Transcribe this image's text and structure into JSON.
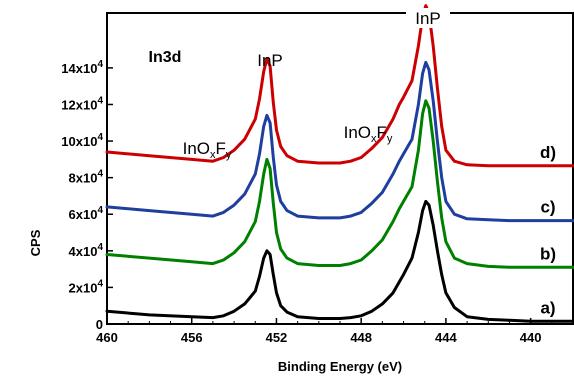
{
  "chart_data": {
    "type": "line",
    "title": "",
    "xlabel": "Binding Energy (eV)",
    "ylabel": "CPS",
    "xlim": [
      460,
      438
    ],
    "ylim": [
      0,
      170000
    ],
    "x_reversed": true,
    "x_ticks": [
      460,
      456,
      452,
      448,
      444,
      440
    ],
    "y_ticks": [
      {
        "value": 0,
        "label": "0"
      },
      {
        "value": 20000,
        "label": "2x10",
        "exp": "4"
      },
      {
        "value": 40000,
        "label": "4x10",
        "exp": "4"
      },
      {
        "value": 60000,
        "label": "6x10",
        "exp": "4"
      },
      {
        "value": 80000,
        "label": "8x10",
        "exp": "4"
      },
      {
        "value": 100000,
        "label": "10x10",
        "exp": "4"
      },
      {
        "value": 120000,
        "label": "12x10",
        "exp": "4"
      },
      {
        "value": 140000,
        "label": "14x10",
        "exp": "4"
      }
    ],
    "annotations": [
      {
        "key": "region",
        "text": "In3d"
      },
      {
        "key": "inp_left",
        "text": "InP"
      },
      {
        "key": "inp_right",
        "text": "InP"
      },
      {
        "key": "inox_left",
        "text": "InO",
        "sub1": "x",
        "mid": "F",
        "sub2": "y"
      },
      {
        "key": "inox_right",
        "text": "InO",
        "sub1": "x",
        "mid": "F",
        "sub2": "y"
      }
    ],
    "series": [
      {
        "label": "a)",
        "color": "#000000",
        "x": [
          460,
          458,
          456,
          455,
          454.5,
          454,
          453.5,
          453,
          452.8,
          452.6,
          452.45,
          452.3,
          452.15,
          452,
          451.8,
          451.5,
          451,
          450,
          449,
          448.5,
          448,
          447.5,
          447,
          446.5,
          446.2,
          446,
          445.6,
          445.3,
          445.1,
          444.95,
          444.8,
          444.6,
          444.4,
          444.2,
          444,
          443.6,
          443,
          442,
          441,
          440,
          439,
          438
        ],
        "y": [
          7000,
          5000,
          4000,
          3500,
          4500,
          7000,
          11000,
          18000,
          26000,
          36000,
          40000,
          38000,
          27000,
          17000,
          10000,
          6500,
          4000,
          3000,
          3000,
          3500,
          4500,
          7000,
          11000,
          17000,
          23000,
          27000,
          36000,
          50000,
          62000,
          67000,
          65000,
          54000,
          40000,
          27000,
          17000,
          9000,
          4000,
          2500,
          2000,
          1500,
          1500,
          1500
        ]
      },
      {
        "label": "b)",
        "color": "#008000",
        "x": [
          460,
          458,
          456,
          455,
          454.5,
          454,
          453.5,
          453,
          452.8,
          452.6,
          452.45,
          452.3,
          452.15,
          452,
          451.8,
          451.5,
          451,
          450,
          449,
          448.5,
          448,
          447.5,
          447,
          446.5,
          446.2,
          446,
          445.6,
          445.3,
          445.1,
          444.95,
          444.8,
          444.6,
          444.4,
          444.2,
          444,
          443.6,
          443,
          442,
          441,
          440,
          439,
          438
        ],
        "y": [
          38000,
          36000,
          34000,
          33000,
          35000,
          39000,
          45000,
          56000,
          67000,
          82000,
          90000,
          85000,
          66000,
          50000,
          41000,
          36000,
          33000,
          32000,
          32000,
          33000,
          35000,
          40000,
          46000,
          56000,
          63000,
          67000,
          75000,
          95000,
          115000,
          122000,
          118000,
          100000,
          78000,
          58000,
          45000,
          36000,
          33000,
          31500,
          31000,
          31000,
          31000,
          31000
        ]
      },
      {
        "label": "c)",
        "color": "#1f3f9f",
        "x": [
          460,
          458,
          456,
          455,
          454.5,
          454,
          453.5,
          453,
          452.8,
          452.6,
          452.45,
          452.3,
          452.15,
          452,
          451.8,
          451.5,
          451,
          450,
          449,
          448.5,
          448,
          447.5,
          447,
          446.5,
          446.2,
          446,
          445.6,
          445.3,
          445.1,
          444.95,
          444.8,
          444.6,
          444.4,
          444.2,
          444,
          443.6,
          443,
          442,
          441,
          440,
          439,
          438
        ],
        "y": [
          64000,
          62000,
          60000,
          59000,
          61000,
          65000,
          71000,
          82000,
          93000,
          108000,
          114000,
          110000,
          91000,
          76000,
          67000,
          62000,
          59000,
          58000,
          58000,
          59000,
          61000,
          66000,
          72000,
          82000,
          89000,
          93000,
          101000,
          120000,
          137000,
          143000,
          139000,
          122000,
          100000,
          80000,
          67000,
          60000,
          57500,
          57000,
          56500,
          56500,
          56500,
          56500
        ]
      },
      {
        "label": "d)",
        "color": "#cc0000",
        "x": [
          460,
          458,
          456,
          455,
          454.5,
          454,
          453.5,
          453,
          452.8,
          452.6,
          452.45,
          452.3,
          452.15,
          452,
          451.8,
          451.5,
          451,
          450,
          449,
          448.5,
          448,
          447.5,
          447,
          446.5,
          446.2,
          446,
          445.6,
          445.3,
          445.1,
          444.95,
          444.8,
          444.6,
          444.4,
          444.2,
          444,
          443.6,
          443,
          442,
          441,
          440,
          439,
          438
        ],
        "y": [
          94000,
          92000,
          90000,
          89000,
          91000,
          95000,
          101000,
          112000,
          123000,
          138000,
          145000,
          141000,
          121000,
          106000,
          97000,
          92000,
          89000,
          88000,
          88000,
          89000,
          91000,
          96000,
          102000,
          112000,
          120000,
          124000,
          133000,
          152000,
          168000,
          174000,
          170000,
          152000,
          129000,
          108000,
          95000,
          89000,
          87000,
          86500,
          86500,
          86500,
          86500,
          86500
        ]
      }
    ]
  }
}
